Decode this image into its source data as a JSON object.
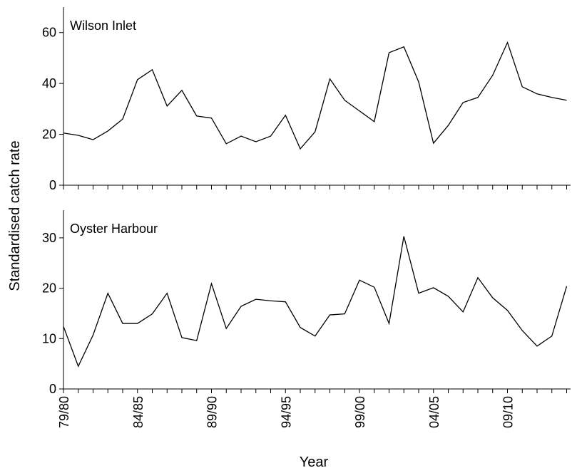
{
  "chart_data": [
    {
      "type": "line",
      "title": "Wilson Inlet",
      "ylabel": "Standardised catch rate",
      "color": "#000000",
      "ylim": [
        0,
        70
      ],
      "yticks": [
        0,
        20,
        40,
        60
      ],
      "values": [
        20.5,
        19.6,
        17.9,
        21.3,
        26,
        41.5,
        45.4,
        31.1,
        37.3,
        27.2,
        26.4,
        16.3,
        19.3,
        17.1,
        19.3,
        27.5,
        14.3,
        21,
        41.8,
        33.4,
        29.2,
        25,
        52.1,
        54.4,
        40.6,
        16.5,
        23.5,
        32.5,
        34.5,
        43.2,
        56.1,
        38.7,
        35.9,
        34.5,
        33.4
      ]
    },
    {
      "type": "line",
      "title": "Oyster Harbour",
      "xlabel": "Year",
      "color": "#000000",
      "ylim": [
        0,
        35.5
      ],
      "yticks": [
        0,
        10,
        20,
        30
      ],
      "categories": [
        "79/80",
        null,
        null,
        null,
        null,
        "84/85",
        null,
        null,
        null,
        null,
        "89/90",
        null,
        null,
        null,
        null,
        "94/95",
        null,
        null,
        null,
        null,
        "99/00",
        null,
        null,
        null,
        null,
        "04/05",
        null,
        null,
        null,
        null,
        "09/10",
        null,
        null,
        null,
        null
      ],
      "values": [
        12.4,
        4.5,
        10.7,
        19,
        13,
        13,
        14.9,
        19,
        10.2,
        9.6,
        20.9,
        12,
        16.4,
        17.8,
        17.5,
        17.3,
        12.2,
        10.5,
        14.7,
        14.9,
        21.6,
        20.2,
        13,
        30.3,
        19,
        20.1,
        18.4,
        15.3,
        22.1,
        18.1,
        15.6,
        11.6,
        8.5,
        10.5,
        20.4
      ]
    }
  ]
}
